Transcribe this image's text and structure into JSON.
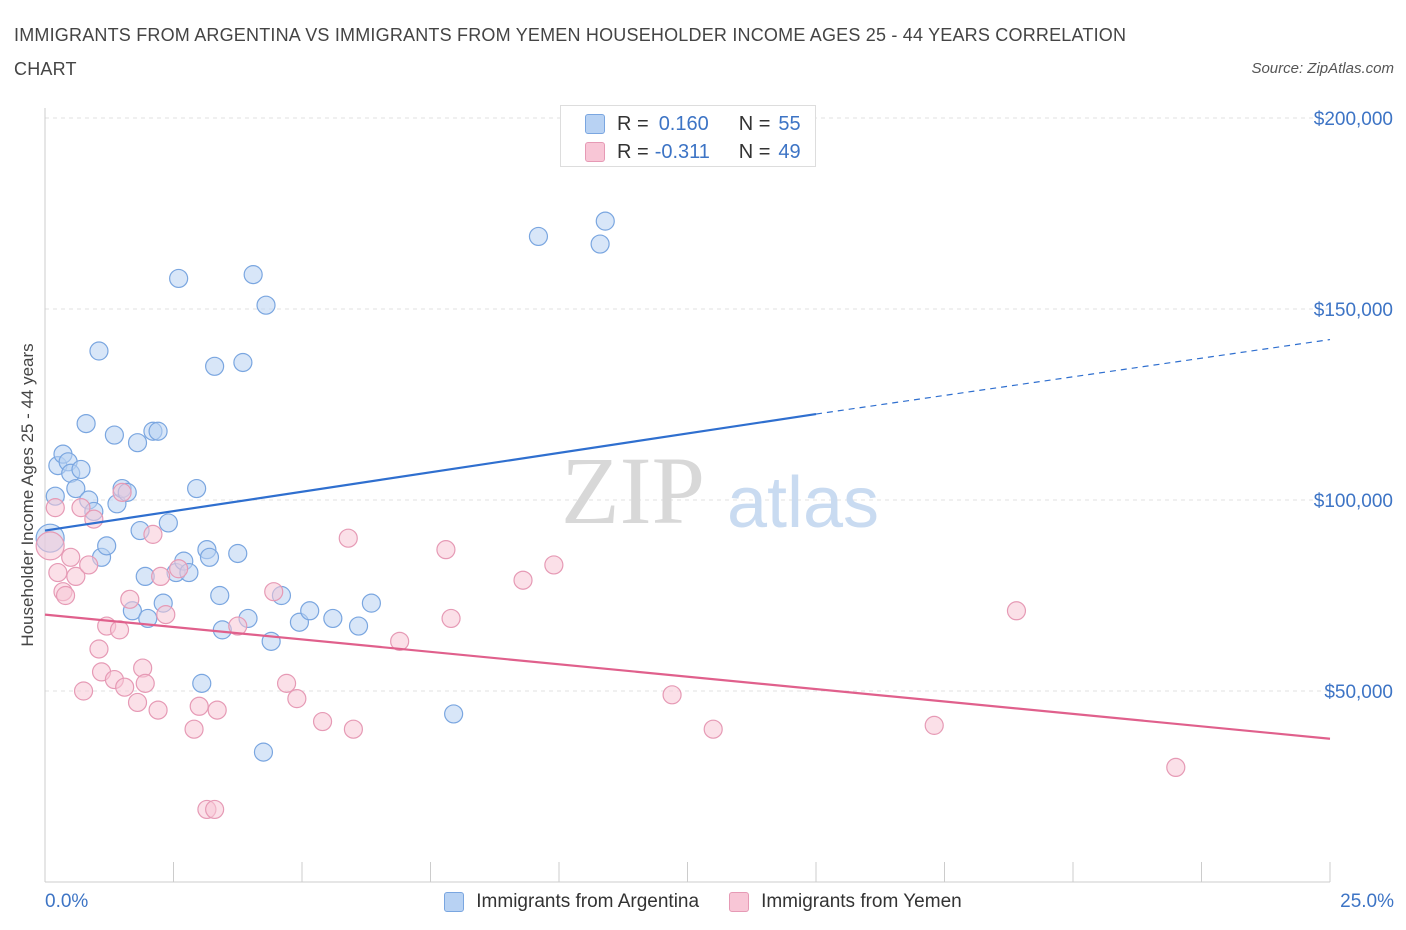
{
  "title": "IMMIGRANTS FROM ARGENTINA VS IMMIGRANTS FROM YEMEN HOUSEHOLDER INCOME AGES 25 - 44 YEARS CORRELATION CHART",
  "source": "Source: ZipAtlas.com",
  "watermark": {
    "zip": "ZIP",
    "atlas": "atlas"
  },
  "legend": {
    "r_label": "R =",
    "n_label": "N =",
    "series": [
      {
        "name": "Immigrants from Argentina",
        "r": "0.160",
        "n": "55",
        "color": "#7aa6e0"
      },
      {
        "name": "Immigrants from Yemen",
        "r": "-0.311",
        "n": "49",
        "color": "#e69ab5"
      }
    ]
  },
  "chart_data": {
    "type": "scatter",
    "title": "IMMIGRANTS FROM ARGENTINA VS IMMIGRANTS FROM YEMEN HOUSEHOLDER INCOME AGES 25 - 44 YEARS CORRELATION CHART",
    "xlabel": "",
    "ylabel": "Householder Income Ages 25 - 44 years",
    "xlim": [
      0,
      25
    ],
    "ylim": [
      0,
      205000
    ],
    "x_tick_labels": [
      "0.0%",
      "25.0%"
    ],
    "y_ticks": [
      50000,
      100000,
      150000,
      200000
    ],
    "y_tick_labels": [
      "$50,000",
      "$100,000",
      "$150,000",
      "$200,000"
    ],
    "grid": true,
    "legend_position": "top-center",
    "series": [
      {
        "name": "Immigrants from Argentina",
        "color": "#7aa6e0",
        "points": [
          [
            0.1,
            90000
          ],
          [
            0.2,
            101000
          ],
          [
            0.25,
            109000
          ],
          [
            0.35,
            112000
          ],
          [
            0.45,
            110000
          ],
          [
            0.5,
            107000
          ],
          [
            0.6,
            103000
          ],
          [
            0.7,
            108000
          ],
          [
            0.8,
            120000
          ],
          [
            0.85,
            100000
          ],
          [
            0.95,
            97000
          ],
          [
            1.05,
            139000
          ],
          [
            1.1,
            85000
          ],
          [
            1.2,
            88000
          ],
          [
            1.35,
            117000
          ],
          [
            1.4,
            99000
          ],
          [
            1.5,
            103000
          ],
          [
            1.6,
            102000
          ],
          [
            1.7,
            71000
          ],
          [
            1.8,
            115000
          ],
          [
            1.85,
            92000
          ],
          [
            1.95,
            80000
          ],
          [
            2.0,
            69000
          ],
          [
            2.1,
            118000
          ],
          [
            2.2,
            118000
          ],
          [
            2.3,
            73000
          ],
          [
            2.4,
            94000
          ],
          [
            2.55,
            81000
          ],
          [
            2.6,
            158000
          ],
          [
            2.7,
            84000
          ],
          [
            2.8,
            81000
          ],
          [
            2.95,
            103000
          ],
          [
            3.05,
            52000
          ],
          [
            3.15,
            87000
          ],
          [
            3.2,
            85000
          ],
          [
            3.3,
            135000
          ],
          [
            3.4,
            75000
          ],
          [
            3.45,
            66000
          ],
          [
            3.75,
            86000
          ],
          [
            3.85,
            136000
          ],
          [
            3.95,
            69000
          ],
          [
            4.05,
            159000
          ],
          [
            4.3,
            151000
          ],
          [
            4.4,
            63000
          ],
          [
            4.6,
            75000
          ],
          [
            4.95,
            68000
          ],
          [
            5.15,
            71000
          ],
          [
            5.6,
            69000
          ],
          [
            6.1,
            67000
          ],
          [
            6.35,
            73000
          ],
          [
            4.25,
            34000
          ],
          [
            7.95,
            44000
          ],
          [
            9.6,
            169000
          ],
          [
            10.8,
            167000
          ],
          [
            10.9,
            173000
          ]
        ]
      },
      {
        "name": "Immigrants from Yemen",
        "color": "#e69ab5",
        "points": [
          [
            0.1,
            88000
          ],
          [
            0.2,
            98000
          ],
          [
            0.25,
            81000
          ],
          [
            0.35,
            76000
          ],
          [
            0.4,
            75000
          ],
          [
            0.5,
            85000
          ],
          [
            0.6,
            80000
          ],
          [
            0.7,
            98000
          ],
          [
            0.75,
            50000
          ],
          [
            0.85,
            83000
          ],
          [
            0.95,
            95000
          ],
          [
            1.05,
            61000
          ],
          [
            1.1,
            55000
          ],
          [
            1.2,
            67000
          ],
          [
            1.35,
            53000
          ],
          [
            1.45,
            66000
          ],
          [
            1.5,
            102000
          ],
          [
            1.55,
            51000
          ],
          [
            1.65,
            74000
          ],
          [
            1.8,
            47000
          ],
          [
            1.9,
            56000
          ],
          [
            1.95,
            52000
          ],
          [
            2.1,
            91000
          ],
          [
            2.2,
            45000
          ],
          [
            2.25,
            80000
          ],
          [
            2.35,
            70000
          ],
          [
            2.6,
            82000
          ],
          [
            2.9,
            40000
          ],
          [
            3.0,
            46000
          ],
          [
            3.15,
            19000
          ],
          [
            3.3,
            19000
          ],
          [
            3.35,
            45000
          ],
          [
            3.75,
            67000
          ],
          [
            4.45,
            76000
          ],
          [
            4.7,
            52000
          ],
          [
            4.9,
            48000
          ],
          [
            5.4,
            42000
          ],
          [
            5.9,
            90000
          ],
          [
            6.0,
            40000
          ],
          [
            6.9,
            63000
          ],
          [
            7.8,
            87000
          ],
          [
            7.9,
            69000
          ],
          [
            9.3,
            79000
          ],
          [
            9.9,
            83000
          ],
          [
            12.2,
            49000
          ],
          [
            13.0,
            40000
          ],
          [
            17.3,
            41000
          ],
          [
            18.9,
            71000
          ],
          [
            22.0,
            30000
          ]
        ]
      }
    ],
    "trend_lines": [
      {
        "series": "Immigrants from Argentina",
        "x": [
          0,
          15
        ],
        "y": [
          92000,
          122500
        ],
        "dashed_to": [
          25,
          142000
        ]
      },
      {
        "series": "Immigrants from Yemen",
        "x": [
          0,
          25
        ],
        "y": [
          70000,
          37500
        ]
      }
    ]
  }
}
